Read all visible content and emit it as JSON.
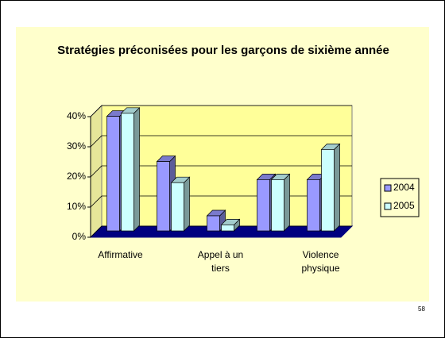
{
  "chart_data": {
    "type": "bar3d",
    "title": "Stratégies préconisées pour les garçons de sixième année",
    "categories": [
      "Affirmative",
      null,
      "Appel à un tiers",
      null,
      "Violence physique"
    ],
    "series": [
      {
        "name": "2004",
        "color": "#9999ff",
        "values": [
          38,
          23,
          5,
          17,
          17
        ]
      },
      {
        "name": "2005",
        "color": "#ccffff",
        "values": [
          39,
          16,
          2,
          17,
          27
        ]
      }
    ],
    "ylim": [
      0,
      40
    ],
    "yticks": [
      {
        "value": 0,
        "label": "0%"
      },
      {
        "value": 10,
        "label": "10%"
      },
      {
        "value": 20,
        "label": "20%"
      },
      {
        "value": 30,
        "label": "30%"
      },
      {
        "value": 40,
        "label": "40%"
      }
    ],
    "grid": true,
    "legend": "right",
    "page_number": "58"
  }
}
